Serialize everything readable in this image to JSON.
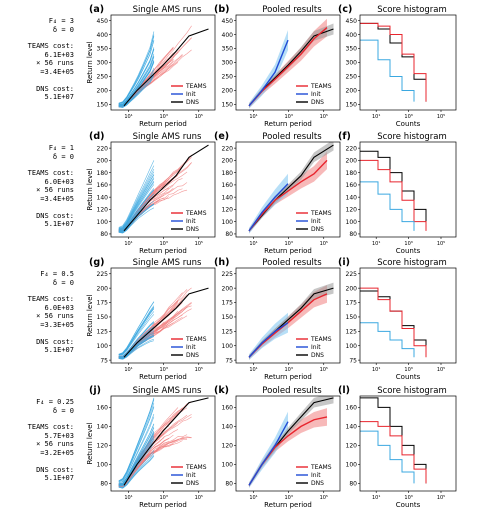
{
  "chart_data": {
    "type": "line",
    "layout": "4x3 panel grid",
    "columns": [
      {
        "title": "Single AMS runs"
      },
      {
        "title": "Pooled results"
      },
      {
        "title": "Score histogram"
      }
    ],
    "common": {
      "ylabel": "Return level",
      "xlabel_left": "Return period",
      "xlabel_right": "Counts",
      "x_scale": "log",
      "xtick_labels": [
        "10¹",
        "10³",
        "10⁵"
      ],
      "legend": [
        "TEAMS",
        "Init",
        "DNS"
      ],
      "legend_position": "lower right",
      "colors": {
        "TEAMS": "#e8242d",
        "Init": "#1f4bd6",
        "Init_hist": "#3ba8e0",
        "DNS": "#000000",
        "TEAMS_band": "#f08080",
        "Init_band": "#7cc4f0",
        "DNS_band": "#999999"
      }
    },
    "rows": [
      {
        "params": {
          "forcing": "F₄ = 3",
          "delta": "δ = 0",
          "teams_cost_label": "TEAMS cost:",
          "teams_cost_value": "6.1E+03",
          "runs": "× 56 runs",
          "total": "=3.4E+05",
          "dns_cost_label": "DNS cost:",
          "dns_cost_value": "5.1E+07"
        },
        "panel_labels": [
          "(a)",
          "(b)",
          "(c)"
        ],
        "yticks": [
          150,
          200,
          250,
          300,
          350,
          400,
          450
        ],
        "ylim": [
          130,
          470
        ],
        "dns": {
          "x": [
            1,
            2,
            3,
            4,
            5,
            6,
            7.5
          ],
          "y": [
            145,
            200,
            245,
            290,
            340,
            395,
            420
          ]
        },
        "teams_mean": {
          "x": [
            1,
            2,
            3,
            4,
            5,
            6,
            7
          ],
          "y": [
            145,
            197,
            240,
            285,
            330,
            385,
            425
          ]
        },
        "init_mean": {
          "x": [
            1,
            2,
            3,
            4
          ],
          "y": [
            145,
            200,
            265,
            380
          ]
        },
        "hist_counts_log": [
          0.5,
          1.5,
          2.5,
          3.5,
          4.5,
          5.5
        ],
        "hist_dns_y": [
          440,
          420,
          370,
          320,
          240,
          160
        ],
        "hist_teams_y": [
          440,
          430,
          400,
          330,
          260,
          160
        ],
        "hist_init_y": [
          380,
          310,
          250,
          200,
          160
        ]
      },
      {
        "params": {
          "forcing": "F₄ = 1",
          "delta": "δ = 0",
          "teams_cost_label": "TEAMS cost:",
          "teams_cost_value": "6.0E+03",
          "runs": "× 56 runs",
          "total": "=3.4E+05",
          "dns_cost_label": "DNS cost:",
          "dns_cost_value": "5.1E+07"
        },
        "panel_labels": [
          "(d)",
          "(e)",
          "(f)"
        ],
        "yticks": [
          80,
          100,
          120,
          140,
          160,
          180,
          200,
          220
        ],
        "ylim": [
          75,
          230
        ],
        "dns": {
          "x": [
            1,
            2,
            3,
            4,
            5,
            6,
            7.5
          ],
          "y": [
            85,
            110,
            135,
            155,
            175,
            205,
            225
          ]
        },
        "teams_mean": {
          "x": [
            1,
            2,
            3,
            4,
            5,
            6,
            7
          ],
          "y": [
            85,
            112,
            135,
            150,
            165,
            178,
            200
          ]
        },
        "init_mean": {
          "x": [
            1,
            2,
            3,
            4
          ],
          "y": [
            85,
            115,
            140,
            162
          ]
        },
        "hist_counts_log": [
          0.5,
          1.5,
          2.5,
          3.5,
          4.5,
          5.5
        ],
        "hist_dns_y": [
          215,
          205,
          180,
          150,
          120,
          90
        ],
        "hist_teams_y": [
          200,
          185,
          165,
          135,
          100,
          85
        ],
        "hist_init_y": [
          165,
          145,
          120,
          100,
          85
        ]
      },
      {
        "params": {
          "forcing": "F₄ = 0.5",
          "delta": "δ = 0",
          "teams_cost_label": "TEAMS cost:",
          "teams_cost_value": "6.0E+03",
          "runs": "× 56 runs",
          "total": "=3.3E+05",
          "dns_cost_label": "DNS cost:",
          "dns_cost_value": "5.1E+07"
        },
        "panel_labels": [
          "(g)",
          "(h)",
          "(i)"
        ],
        "yticks": [
          75,
          100,
          125,
          150,
          175,
          200,
          225
        ],
        "ylim": [
          70,
          235
        ],
        "dns": {
          "x": [
            1,
            2,
            3,
            4,
            5,
            6,
            7.5
          ],
          "y": [
            80,
            105,
            125,
            145,
            165,
            190,
            200
          ]
        },
        "teams_mean": {
          "x": [
            1,
            2,
            3,
            4,
            5,
            6,
            7
          ],
          "y": [
            80,
            103,
            122,
            140,
            160,
            180,
            190
          ]
        },
        "init_mean": {
          "x": [
            1,
            2,
            3,
            4
          ],
          "y": [
            80,
            105,
            125,
            140
          ]
        },
        "hist_counts_log": [
          0.5,
          1.5,
          2.5,
          3.5,
          4.5,
          5.5
        ],
        "hist_dns_y": [
          195,
          185,
          160,
          135,
          110,
          85
        ],
        "hist_teams_y": [
          200,
          180,
          160,
          130,
          100,
          80
        ],
        "hist_init_y": [
          140,
          125,
          110,
          95,
          80
        ]
      },
      {
        "params": {
          "forcing": "F₄ = 0.25",
          "delta": "δ = 0",
          "teams_cost_label": "TEAMS cost:",
          "teams_cost_value": "5.7E+03",
          "runs": "× 56 runs",
          "total": "=3.2E+05",
          "dns_cost_label": "DNS cost:",
          "dns_cost_value": "5.1E+07"
        },
        "panel_labels": [
          "(j)",
          "(k)",
          "(l)"
        ],
        "yticks": [
          80,
          100,
          120,
          140,
          160
        ],
        "ylim": [
          72,
          172
        ],
        "dns": {
          "x": [
            1,
            2,
            3,
            4,
            5,
            6,
            7.5
          ],
          "y": [
            78,
            100,
            118,
            135,
            150,
            165,
            170
          ]
        },
        "teams_mean": {
          "x": [
            1,
            2,
            3,
            4,
            5,
            6,
            7
          ],
          "y": [
            78,
            100,
            118,
            130,
            140,
            147,
            150
          ]
        },
        "init_mean": {
          "x": [
            1,
            2,
            3,
            4
          ],
          "y": [
            78,
            100,
            120,
            145
          ]
        },
        "hist_counts_log": [
          0.5,
          1.5,
          2.5,
          3.5,
          4.5,
          5.5
        ],
        "hist_dns_y": [
          170,
          160,
          140,
          120,
          100,
          80
        ],
        "hist_teams_y": [
          145,
          140,
          130,
          110,
          95,
          80
        ],
        "hist_init_y": [
          135,
          120,
          105,
          92,
          80
        ]
      }
    ]
  }
}
